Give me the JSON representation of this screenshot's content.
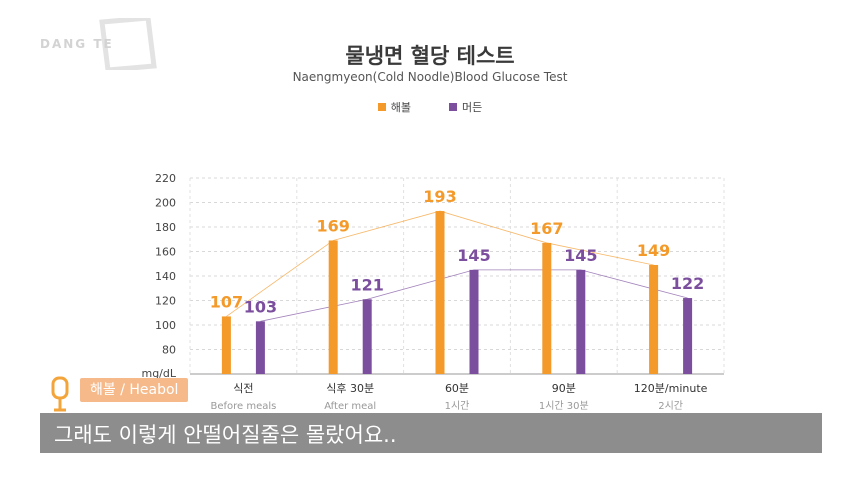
{
  "logo": {
    "text": "DANG TE"
  },
  "speaker": {
    "name": "해볼 / Heabol"
  },
  "caption": {
    "text": "그래도 이렇게 안떨어질줄은 몰랐어요.."
  },
  "colors": {
    "series1": "#f39a2a",
    "series2": "#7b4e9e",
    "caption_bg": "#7d7d7d",
    "speaker_bg": "#f5b98a"
  },
  "chart_data": {
    "type": "bar",
    "title": "물냉면 혈당 테스트",
    "subtitle": "Naengmyeon(Cold Noodle)Blood Glucose Test",
    "ylabel": "mg/dL",
    "ylim": [
      60,
      220
    ],
    "yticks": [
      80,
      100,
      120,
      140,
      160,
      180,
      200,
      220
    ],
    "legend_position": "top-center",
    "grid": true,
    "categories": [
      "식전",
      "식후 30분",
      "60분",
      "90분",
      "120분/minute"
    ],
    "categories_sub": [
      "Before meals",
      "After meal",
      "1시간",
      "1시간 30분",
      "2시간"
    ],
    "series": [
      {
        "name": "해볼",
        "values": [
          107,
          169,
          193,
          167,
          149
        ]
      },
      {
        "name": "머든",
        "values": [
          103,
          121,
          145,
          145,
          122
        ]
      }
    ]
  }
}
